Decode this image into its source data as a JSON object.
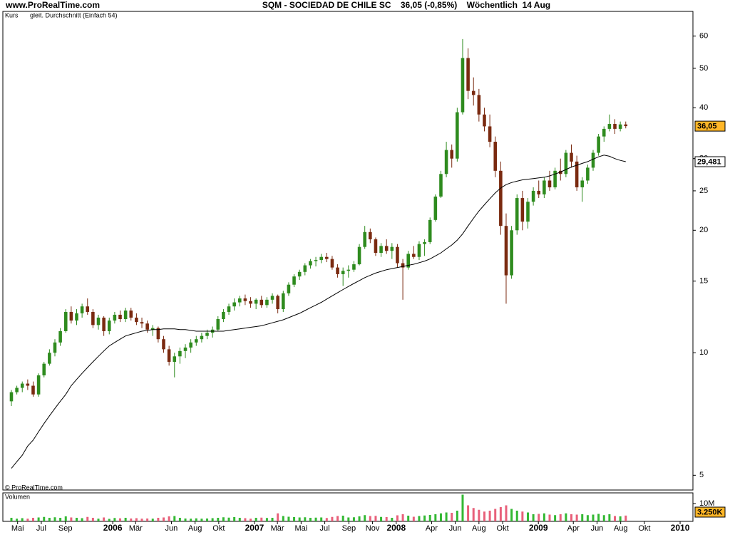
{
  "chart_data": {
    "type": "candlestick",
    "site": "www.ProRealTime.com",
    "title": "SQM - SOCIEDAD DE CHILE SC    36,05 (-0,85%)    Wöchentlich  14 Aug",
    "watermark": "© ProRealTime.com",
    "log_scale": true,
    "ylim": [
      4.6,
      69
    ],
    "yticks": [
      5,
      10,
      15,
      20,
      25,
      30,
      40,
      50,
      60
    ],
    "xlim": [
      "2005-03-24",
      "2010-02-03"
    ],
    "xticks": [
      {
        "value": "2005-05-01",
        "label": "Mai"
      },
      {
        "value": "2005-07-01",
        "label": "Jul"
      },
      {
        "value": "2005-09-01",
        "label": "Sep"
      },
      {
        "value": "2006-01-01",
        "label": "2006"
      },
      {
        "value": "2006-03-01",
        "label": "Mär"
      },
      {
        "value": "2006-06-01",
        "label": "Jun"
      },
      {
        "value": "2006-08-01",
        "label": "Aug"
      },
      {
        "value": "2006-10-01",
        "label": "Okt"
      },
      {
        "value": "2007-01-01",
        "label": "2007"
      },
      {
        "value": "2007-03-01",
        "label": "Mär"
      },
      {
        "value": "2007-05-01",
        "label": "Mai"
      },
      {
        "value": "2007-07-01",
        "label": "Jul"
      },
      {
        "value": "2007-09-01",
        "label": "Sep"
      },
      {
        "value": "2007-11-01",
        "label": "Nov"
      },
      {
        "value": "2008-01-01",
        "label": "2008"
      },
      {
        "value": "2008-04-01",
        "label": "Apr"
      },
      {
        "value": "2008-06-01",
        "label": "Jun"
      },
      {
        "value": "2008-08-01",
        "label": "Aug"
      },
      {
        "value": "2008-10-01",
        "label": "Okt"
      },
      {
        "value": "2009-01-01",
        "label": "2009"
      },
      {
        "value": "2009-04-01",
        "label": "Apr"
      },
      {
        "value": "2009-06-01",
        "label": "Jun"
      },
      {
        "value": "2009-08-01",
        "label": "Aug"
      },
      {
        "value": "2009-10-01",
        "label": "Okt"
      },
      {
        "value": "2010-01-01",
        "label": "2010"
      }
    ],
    "x": [
      "2005-04-15",
      "2005-04-29",
      "2005-05-13",
      "2005-05-27",
      "2005-06-10",
      "2005-06-24",
      "2005-07-08",
      "2005-07-22",
      "2005-08-05",
      "2005-08-19",
      "2005-09-02",
      "2005-09-16",
      "2005-09-30",
      "2005-10-14",
      "2005-10-28",
      "2005-11-11",
      "2005-11-25",
      "2005-12-09",
      "2005-12-23",
      "2006-01-06",
      "2006-01-20",
      "2006-02-03",
      "2006-02-17",
      "2006-03-03",
      "2006-03-17",
      "2006-03-31",
      "2006-04-14",
      "2006-04-28",
      "2006-05-12",
      "2006-05-26",
      "2006-06-09",
      "2006-06-23",
      "2006-07-07",
      "2006-07-21",
      "2006-08-04",
      "2006-08-18",
      "2006-09-01",
      "2006-09-15",
      "2006-09-29",
      "2006-10-13",
      "2006-10-27",
      "2006-11-10",
      "2006-11-24",
      "2006-12-08",
      "2006-12-22",
      "2007-01-05",
      "2007-01-19",
      "2007-02-02",
      "2007-02-16",
      "2007-03-02",
      "2007-03-16",
      "2007-03-30",
      "2007-04-13",
      "2007-04-27",
      "2007-05-11",
      "2007-05-25",
      "2007-06-08",
      "2007-06-22",
      "2007-07-06",
      "2007-07-20",
      "2007-08-03",
      "2007-08-17",
      "2007-08-31",
      "2007-09-14",
      "2007-09-28",
      "2007-10-12",
      "2007-10-26",
      "2007-11-09",
      "2007-11-23",
      "2007-12-07",
      "2007-12-21",
      "2008-01-04",
      "2008-01-18",
      "2008-02-01",
      "2008-02-15",
      "2008-02-29",
      "2008-03-14",
      "2008-03-28",
      "2008-04-11",
      "2008-04-25",
      "2008-05-09",
      "2008-05-23",
      "2008-06-06",
      "2008-06-20",
      "2008-07-04",
      "2008-07-18",
      "2008-08-01",
      "2008-08-15",
      "2008-08-29",
      "2008-09-12",
      "2008-09-26",
      "2008-10-10",
      "2008-10-24",
      "2008-11-07",
      "2008-11-21",
      "2008-12-05",
      "2008-12-19",
      "2009-01-02",
      "2009-01-16",
      "2009-01-30",
      "2009-02-13",
      "2009-02-27",
      "2009-03-13",
      "2009-03-27",
      "2009-04-10",
      "2009-04-24",
      "2009-05-08",
      "2009-05-22",
      "2009-06-05",
      "2009-06-19",
      "2009-07-03",
      "2009-07-17",
      "2009-07-31",
      "2009-08-14"
    ],
    "series": [
      {
        "name": "Kurs",
        "color": "#2e8b1e",
        "down_color": "#7a2a10",
        "values": [
          [
            7.6,
            8.1,
            7.4,
            8.0
          ],
          [
            8.0,
            8.3,
            7.9,
            8.2
          ],
          [
            8.2,
            8.5,
            8.0,
            8.4
          ],
          [
            8.4,
            8.6,
            8.1,
            8.3
          ],
          [
            8.3,
            8.5,
            7.8,
            7.9
          ],
          [
            7.9,
            8.9,
            7.8,
            8.8
          ],
          [
            8.8,
            9.5,
            8.7,
            9.4
          ],
          [
            9.4,
            10.2,
            9.3,
            10.0
          ],
          [
            10.0,
            10.8,
            9.8,
            10.6
          ],
          [
            10.6,
            11.5,
            10.4,
            11.3
          ],
          [
            11.3,
            12.8,
            11.2,
            12.6
          ],
          [
            12.6,
            13.0,
            11.8,
            12.0
          ],
          [
            12.0,
            12.8,
            11.7,
            12.5
          ],
          [
            12.5,
            13.2,
            12.2,
            13.0
          ],
          [
            13.0,
            13.6,
            12.4,
            12.6
          ],
          [
            12.6,
            12.8,
            11.5,
            11.7
          ],
          [
            11.7,
            12.4,
            11.4,
            12.2
          ],
          [
            12.2,
            12.3,
            11.0,
            11.3
          ],
          [
            11.3,
            12.2,
            11.1,
            12.0
          ],
          [
            12.0,
            12.6,
            11.8,
            12.4
          ],
          [
            12.4,
            12.7,
            11.9,
            12.1
          ],
          [
            12.1,
            12.9,
            11.9,
            12.7
          ],
          [
            12.7,
            12.9,
            12.0,
            12.2
          ],
          [
            12.2,
            12.5,
            11.7,
            11.9
          ],
          [
            11.9,
            12.2,
            11.5,
            11.8
          ],
          [
            11.8,
            12.0,
            11.2,
            11.4
          ],
          [
            11.4,
            11.7,
            11.0,
            11.5
          ],
          [
            11.5,
            11.6,
            10.6,
            10.8
          ],
          [
            10.8,
            11.0,
            10.0,
            10.2
          ],
          [
            10.2,
            10.4,
            9.3,
            9.5
          ],
          [
            9.5,
            10.0,
            8.7,
            9.8
          ],
          [
            9.8,
            10.3,
            9.4,
            10.1
          ],
          [
            10.1,
            10.5,
            9.7,
            10.3
          ],
          [
            10.3,
            10.8,
            10.0,
            10.6
          ],
          [
            10.6,
            11.0,
            10.4,
            10.8
          ],
          [
            10.8,
            11.2,
            10.6,
            11.0
          ],
          [
            11.0,
            11.4,
            10.8,
            11.2
          ],
          [
            11.2,
            11.6,
            10.9,
            11.4
          ],
          [
            11.4,
            12.3,
            11.3,
            12.1
          ],
          [
            12.1,
            12.8,
            11.9,
            12.6
          ],
          [
            12.6,
            13.2,
            12.4,
            13.0
          ],
          [
            13.0,
            13.6,
            12.7,
            13.3
          ],
          [
            13.3,
            13.8,
            13.0,
            13.6
          ],
          [
            13.6,
            13.9,
            13.1,
            13.4
          ],
          [
            13.4,
            13.7,
            12.9,
            13.2
          ],
          [
            13.2,
            13.6,
            12.8,
            13.5
          ],
          [
            13.5,
            13.8,
            12.9,
            13.1
          ],
          [
            13.1,
            13.7,
            12.9,
            13.5
          ],
          [
            13.5,
            14.0,
            13.2,
            13.8
          ],
          [
            13.8,
            13.9,
            12.5,
            12.8
          ],
          [
            12.8,
            14.2,
            12.6,
            14.0
          ],
          [
            14.0,
            14.9,
            13.8,
            14.7
          ],
          [
            14.7,
            15.6,
            14.5,
            15.4
          ],
          [
            15.4,
            16.0,
            15.1,
            15.8
          ],
          [
            15.8,
            16.6,
            15.5,
            16.4
          ],
          [
            16.4,
            17.0,
            16.1,
            16.8
          ],
          [
            16.8,
            17.2,
            16.3,
            16.9
          ],
          [
            16.9,
            17.5,
            16.6,
            17.2
          ],
          [
            17.2,
            17.6,
            16.7,
            17.0
          ],
          [
            17.0,
            17.3,
            16.0,
            16.2
          ],
          [
            16.2,
            16.5,
            15.3,
            15.6
          ],
          [
            15.6,
            16.2,
            14.6,
            15.9
          ],
          [
            15.9,
            16.4,
            15.3,
            16.0
          ],
          [
            16.0,
            16.8,
            15.8,
            16.5
          ],
          [
            16.5,
            18.5,
            16.4,
            18.2
          ],
          [
            18.2,
            20.5,
            18.0,
            19.8
          ],
          [
            19.8,
            20.2,
            18.6,
            19.0
          ],
          [
            19.0,
            19.2,
            17.3,
            17.6
          ],
          [
            17.6,
            18.6,
            17.2,
            18.3
          ],
          [
            18.3,
            19.0,
            17.5,
            17.8
          ],
          [
            17.8,
            18.6,
            17.0,
            18.2
          ],
          [
            18.2,
            18.5,
            16.2,
            16.6
          ],
          [
            16.6,
            17.0,
            13.5,
            16.2
          ],
          [
            16.2,
            17.8,
            16.0,
            17.5
          ],
          [
            17.5,
            18.3,
            17.0,
            17.2
          ],
          [
            17.2,
            18.8,
            16.9,
            18.5
          ],
          [
            18.5,
            19.0,
            17.3,
            18.7
          ],
          [
            18.7,
            21.5,
            18.5,
            21.2
          ],
          [
            21.2,
            24.5,
            21.0,
            24.2
          ],
          [
            24.2,
            28.0,
            24.0,
            27.5
          ],
          [
            27.5,
            33.0,
            27.0,
            31.5
          ],
          [
            31.5,
            32.5,
            28.5,
            30.0
          ],
          [
            30.0,
            40.0,
            29.5,
            39.0
          ],
          [
            39.0,
            59.0,
            38.5,
            53.0
          ],
          [
            53.0,
            56.0,
            42.0,
            44.0
          ],
          [
            44.0,
            47.5,
            40.5,
            43.0
          ],
          [
            43.0,
            44.5,
            37.0,
            38.5
          ],
          [
            38.5,
            40.0,
            35.0,
            36.0
          ],
          [
            36.0,
            38.5,
            32.0,
            33.0
          ],
          [
            33.0,
            34.0,
            27.0,
            28.0
          ],
          [
            28.0,
            29.5,
            19.5,
            20.5
          ],
          [
            20.5,
            22.0,
            13.2,
            15.5
          ],
          [
            15.5,
            20.5,
            15.2,
            20.0
          ],
          [
            20.0,
            24.5,
            19.5,
            24.0
          ],
          [
            24.0,
            25.0,
            20.0,
            21.0
          ],
          [
            21.0,
            24.0,
            20.2,
            23.5
          ],
          [
            23.5,
            25.5,
            23.0,
            25.0
          ],
          [
            25.0,
            26.5,
            24.0,
            24.5
          ],
          [
            24.5,
            27.0,
            24.0,
            26.5
          ],
          [
            26.5,
            28.0,
            25.0,
            25.5
          ],
          [
            25.5,
            28.5,
            25.2,
            28.0
          ],
          [
            28.0,
            30.0,
            26.5,
            27.5
          ],
          [
            27.5,
            31.5,
            27.0,
            31.0
          ],
          [
            31.0,
            32.5,
            28.5,
            29.5
          ],
          [
            29.5,
            30.5,
            25.0,
            25.5
          ],
          [
            25.5,
            27.0,
            23.5,
            26.5
          ],
          [
            26.5,
            29.0,
            26.0,
            28.5
          ],
          [
            28.5,
            31.5,
            28.0,
            31.0
          ],
          [
            31.0,
            34.5,
            30.5,
            34.0
          ],
          [
            34.0,
            36.0,
            33.0,
            35.5
          ],
          [
            35.5,
            38.5,
            35.0,
            36.5
          ],
          [
            36.5,
            37.5,
            34.5,
            35.5
          ],
          [
            35.5,
            37.0,
            35.0,
            36.4
          ],
          [
            36.4,
            37.0,
            35.6,
            36.05
          ]
        ]
      },
      {
        "name": "gleit. Durchschnitt (Einfach 54)",
        "color": "#000000",
        "values": [
          5.2,
          5.4,
          5.6,
          5.9,
          6.1,
          6.4,
          6.7,
          7.0,
          7.3,
          7.6,
          7.9,
          8.3,
          8.6,
          8.9,
          9.2,
          9.5,
          9.8,
          10.1,
          10.4,
          10.6,
          10.8,
          11.0,
          11.1,
          11.2,
          11.3,
          11.35,
          11.4,
          11.4,
          11.45,
          11.45,
          11.45,
          11.4,
          11.4,
          11.35,
          11.3,
          11.3,
          11.3,
          11.3,
          11.3,
          11.3,
          11.35,
          11.4,
          11.45,
          11.5,
          11.55,
          11.6,
          11.65,
          11.75,
          11.85,
          11.95,
          12.05,
          12.2,
          12.35,
          12.5,
          12.7,
          12.9,
          13.1,
          13.3,
          13.55,
          13.8,
          14.05,
          14.3,
          14.55,
          14.8,
          15.05,
          15.3,
          15.5,
          15.7,
          15.85,
          16.0,
          16.1,
          16.2,
          16.3,
          16.4,
          16.5,
          16.65,
          16.8,
          17.0,
          17.3,
          17.6,
          18.0,
          18.4,
          18.9,
          19.6,
          20.5,
          21.4,
          22.3,
          23.1,
          23.9,
          24.7,
          25.4,
          25.9,
          26.2,
          26.4,
          26.6,
          26.7,
          26.8,
          26.9,
          27.0,
          27.2,
          27.5,
          27.8,
          28.2,
          28.6,
          28.9,
          29.2,
          29.5,
          29.9,
          30.3,
          30.6,
          30.4,
          30.0,
          29.7,
          29.481
        ]
      }
    ],
    "price_marker": {
      "value": 36.05,
      "label": "36,05",
      "color": "#ffb627"
    },
    "ma_marker": {
      "value": 29.481,
      "label": "29,481",
      "color": "#ffffff"
    },
    "volume": {
      "name": "Volumen",
      "up_color": "#33b833",
      "down_color": "#e8607a",
      "ylim": [
        0,
        16
      ],
      "yticks": [
        {
          "value": 10,
          "label": "10M"
        }
      ],
      "last": {
        "value": 3.25,
        "label": "3.250K",
        "color": "#ffb627"
      },
      "values": [
        2.0,
        1.5,
        1.8,
        1.5,
        2.0,
        2.2,
        2.5,
        2.0,
        2.3,
        2.0,
        2.8,
        2.2,
        2.0,
        1.8,
        2.5,
        2.0,
        1.5,
        2.2,
        1.4,
        1.9,
        1.7,
        2.0,
        1.6,
        1.8,
        1.5,
        1.6,
        1.5,
        2.0,
        2.2,
        2.8,
        3.0,
        2.0,
        1.6,
        1.5,
        1.7,
        1.5,
        1.6,
        1.8,
        2.0,
        2.3,
        2.1,
        2.4,
        2.0,
        1.8,
        1.5,
        2.0,
        2.1,
        1.9,
        2.0,
        4.5,
        3.0,
        2.6,
        2.4,
        2.2,
        2.3,
        2.0,
        2.1,
        2.2,
        1.9,
        2.5,
        3.0,
        3.2,
        2.2,
        2.3,
        2.8,
        3.5,
        3.0,
        3.1,
        2.5,
        2.4,
        2.0,
        3.4,
        4.0,
        3.2,
        2.6,
        3.0,
        3.3,
        3.6,
        4.0,
        4.5,
        5.0,
        4.8,
        6.0,
        15.0,
        9.0,
        7.5,
        6.5,
        5.5,
        6.0,
        7.0,
        8.0,
        9.0,
        7.0,
        6.0,
        5.5,
        5.0,
        4.0,
        4.2,
        4.5,
        3.8,
        3.5,
        4.0,
        4.5,
        4.0,
        3.8,
        4.0,
        3.5,
        3.8,
        4.2,
        3.5,
        4.0,
        3.0,
        2.8,
        3.25
      ]
    }
  }
}
